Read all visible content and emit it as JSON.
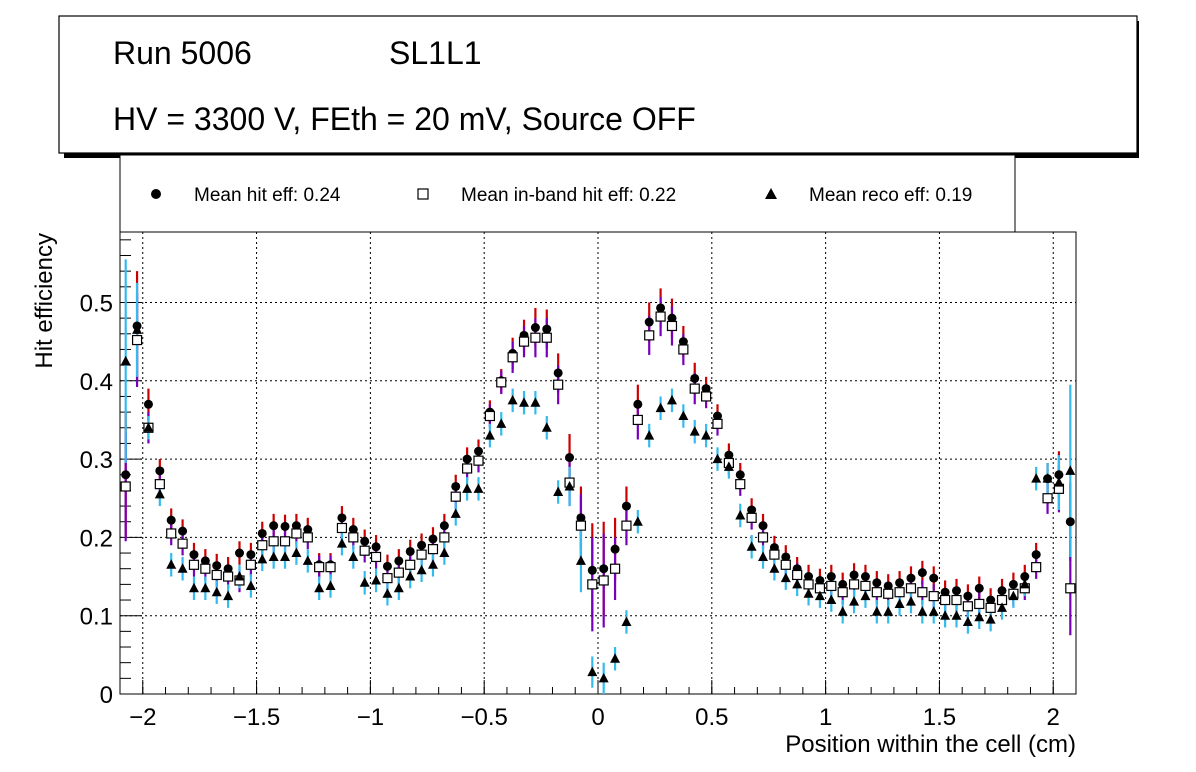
{
  "chart_data": {
    "type": "scatter",
    "title_lines": [
      "Run 5006",
      "SL1L1",
      "HV = 3300 V, FEth = 20 mV, Source OFF"
    ],
    "xlabel": "Position within the cell (cm)",
    "ylabel": "Hit efficiency",
    "xlim": [
      -2.1,
      2.1
    ],
    "ylim": [
      0,
      0.59
    ],
    "x_ticks": [
      -2,
      -1.5,
      -1,
      -0.5,
      0,
      0.5,
      1,
      1.5,
      2
    ],
    "x_tick_labels": [
      "−2",
      "−1.5",
      "−1",
      "−0.5",
      "0",
      "0.5",
      "1",
      "1.5",
      "2"
    ],
    "y_ticks": [
      0,
      0.1,
      0.2,
      0.3,
      0.4,
      0.5
    ],
    "y_tick_labels": [
      "0",
      "0.1",
      "0.2",
      "0.3",
      "0.4",
      "0.5"
    ],
    "grid": true,
    "legend_position": "top",
    "x": [
      -2.075,
      -2.025,
      -1.975,
      -1.925,
      -1.875,
      -1.825,
      -1.775,
      -1.725,
      -1.675,
      -1.625,
      -1.575,
      -1.525,
      -1.475,
      -1.425,
      -1.375,
      -1.325,
      -1.275,
      -1.225,
      -1.175,
      -1.125,
      -1.075,
      -1.025,
      -0.975,
      -0.925,
      -0.875,
      -0.825,
      -0.775,
      -0.725,
      -0.675,
      -0.625,
      -0.575,
      -0.525,
      -0.475,
      -0.425,
      -0.375,
      -0.325,
      -0.275,
      -0.225,
      -0.175,
      -0.125,
      -0.075,
      -0.025,
      0.025,
      0.075,
      0.125,
      0.175,
      0.225,
      0.275,
      0.325,
      0.375,
      0.425,
      0.475,
      0.525,
      0.575,
      0.625,
      0.675,
      0.725,
      0.775,
      0.825,
      0.875,
      0.925,
      0.975,
      1.025,
      1.075,
      1.125,
      1.175,
      1.225,
      1.275,
      1.325,
      1.375,
      1.425,
      1.475,
      1.525,
      1.575,
      1.625,
      1.675,
      1.725,
      1.775,
      1.825,
      1.875,
      1.925,
      1.975,
      2.025,
      2.075
    ],
    "series": [
      {
        "name": "Mean hit  eff: 0.24",
        "marker": "circle",
        "color": "#000000",
        "errcolor": "#cc0000",
        "values": [
          0.28,
          0.47,
          0.37,
          0.285,
          0.222,
          0.208,
          0.178,
          0.17,
          0.164,
          0.16,
          0.18,
          0.178,
          0.205,
          0.215,
          0.214,
          0.215,
          0.21,
          0.165,
          0.165,
          0.225,
          0.21,
          0.195,
          0.188,
          0.163,
          0.17,
          0.182,
          0.19,
          0.198,
          0.215,
          0.265,
          0.3,
          0.31,
          0.36,
          0.4,
          0.435,
          0.458,
          0.468,
          0.466,
          0.41,
          0.302,
          0.225,
          0.158,
          0.16,
          0.185,
          0.24,
          0.37,
          0.475,
          0.493,
          0.48,
          0.45,
          0.403,
          0.39,
          0.355,
          0.305,
          0.28,
          0.235,
          0.215,
          0.187,
          0.175,
          0.16,
          0.15,
          0.145,
          0.15,
          0.14,
          0.152,
          0.15,
          0.142,
          0.138,
          0.142,
          0.148,
          0.155,
          0.148,
          0.13,
          0.132,
          0.125,
          0.135,
          0.12,
          0.132,
          0.14,
          0.15,
          0.178,
          0.275,
          0.28,
          0.22
        ],
        "errors": [
          0.08,
          0.07,
          0.02,
          0.015,
          0.015,
          0.015,
          0.015,
          0.015,
          0.015,
          0.015,
          0.015,
          0.015,
          0.015,
          0.015,
          0.015,
          0.015,
          0.015,
          0.015,
          0.015,
          0.015,
          0.015,
          0.015,
          0.015,
          0.015,
          0.015,
          0.015,
          0.015,
          0.015,
          0.015,
          0.015,
          0.015,
          0.015,
          0.015,
          0.015,
          0.02,
          0.02,
          0.025,
          0.025,
          0.025,
          0.03,
          0.04,
          0.06,
          0.06,
          0.04,
          0.025,
          0.025,
          0.025,
          0.025,
          0.025,
          0.02,
          0.02,
          0.015,
          0.015,
          0.015,
          0.015,
          0.015,
          0.015,
          0.015,
          0.015,
          0.015,
          0.015,
          0.015,
          0.015,
          0.015,
          0.015,
          0.015,
          0.015,
          0.015,
          0.015,
          0.015,
          0.015,
          0.015,
          0.015,
          0.015,
          0.015,
          0.015,
          0.015,
          0.015,
          0.015,
          0.015,
          0.015,
          0.02,
          0.03,
          0.05
        ]
      },
      {
        "name": "Mean in-band hit eff: 0.22",
        "marker": "square-open",
        "color": "#000000",
        "errcolor": "#7700bb",
        "values": [
          0.265,
          0.452,
          0.34,
          0.268,
          0.205,
          0.192,
          0.165,
          0.16,
          0.152,
          0.15,
          0.145,
          0.165,
          0.19,
          0.195,
          0.195,
          0.205,
          0.2,
          0.162,
          0.162,
          0.212,
          0.2,
          0.183,
          0.175,
          0.148,
          0.155,
          0.165,
          0.178,
          0.185,
          0.2,
          0.252,
          0.288,
          0.298,
          0.355,
          0.398,
          0.43,
          0.45,
          0.455,
          0.455,
          0.395,
          0.27,
          0.215,
          0.14,
          0.145,
          0.16,
          0.215,
          0.35,
          0.458,
          0.482,
          0.47,
          0.44,
          0.39,
          0.38,
          0.345,
          0.295,
          0.268,
          0.225,
          0.2,
          0.178,
          0.165,
          0.152,
          0.14,
          0.135,
          0.138,
          0.13,
          0.14,
          0.138,
          0.13,
          0.128,
          0.13,
          0.135,
          0.13,
          0.125,
          0.12,
          0.12,
          0.112,
          0.115,
          0.11,
          0.12,
          0.128,
          0.135,
          0.162,
          0.25,
          0.262,
          0.135
        ],
        "errors": [
          0.07,
          0.06,
          0.02,
          0.015,
          0.015,
          0.015,
          0.015,
          0.015,
          0.015,
          0.015,
          0.015,
          0.015,
          0.015,
          0.015,
          0.015,
          0.015,
          0.015,
          0.015,
          0.015,
          0.015,
          0.015,
          0.015,
          0.015,
          0.015,
          0.015,
          0.015,
          0.015,
          0.015,
          0.015,
          0.015,
          0.015,
          0.015,
          0.015,
          0.015,
          0.02,
          0.02,
          0.025,
          0.025,
          0.025,
          0.03,
          0.04,
          0.06,
          0.06,
          0.04,
          0.025,
          0.025,
          0.025,
          0.025,
          0.025,
          0.02,
          0.02,
          0.015,
          0.015,
          0.015,
          0.015,
          0.015,
          0.015,
          0.015,
          0.015,
          0.015,
          0.015,
          0.015,
          0.015,
          0.015,
          0.015,
          0.015,
          0.015,
          0.015,
          0.015,
          0.015,
          0.015,
          0.015,
          0.015,
          0.015,
          0.015,
          0.015,
          0.015,
          0.015,
          0.015,
          0.015,
          0.015,
          0.02,
          0.03,
          0.06
        ]
      },
      {
        "name": "Mean reco eff: 0.19",
        "marker": "triangle",
        "color": "#000000",
        "errcolor": "#33bbee",
        "values": [
          0.425,
          0.465,
          0.34,
          0.255,
          0.165,
          0.16,
          0.135,
          0.135,
          0.13,
          0.125,
          0.15,
          0.138,
          0.172,
          0.175,
          0.175,
          0.18,
          0.17,
          0.135,
          0.138,
          0.192,
          0.175,
          0.142,
          0.145,
          0.128,
          0.135,
          0.15,
          0.158,
          0.165,
          0.18,
          0.23,
          0.262,
          0.262,
          0.33,
          0.345,
          0.375,
          0.372,
          0.372,
          0.34,
          0.258,
          0.265,
          0.17,
          0.028,
          0.02,
          0.045,
          0.092,
          0.22,
          0.33,
          0.365,
          0.375,
          0.355,
          0.335,
          0.33,
          0.3,
          0.29,
          0.228,
          0.188,
          0.175,
          0.16,
          0.148,
          0.14,
          0.128,
          0.125,
          0.12,
          0.105,
          0.118,
          0.125,
          0.105,
          0.105,
          0.115,
          0.118,
          0.105,
          0.105,
          0.1,
          0.1,
          0.092,
          0.098,
          0.095,
          0.11,
          0.125,
          0.14,
          0.275,
          0.275,
          0.27,
          0.285
        ],
        "errors": [
          0.13,
          0.06,
          0.015,
          0.015,
          0.015,
          0.015,
          0.015,
          0.015,
          0.015,
          0.015,
          0.015,
          0.015,
          0.015,
          0.015,
          0.015,
          0.015,
          0.015,
          0.015,
          0.015,
          0.015,
          0.015,
          0.015,
          0.015,
          0.015,
          0.015,
          0.015,
          0.015,
          0.015,
          0.015,
          0.015,
          0.015,
          0.015,
          0.015,
          0.015,
          0.015,
          0.015,
          0.015,
          0.015,
          0.015,
          0.025,
          0.04,
          0.02,
          0.02,
          0.015,
          0.015,
          0.015,
          0.015,
          0.015,
          0.015,
          0.015,
          0.015,
          0.015,
          0.015,
          0.015,
          0.015,
          0.015,
          0.015,
          0.015,
          0.015,
          0.015,
          0.015,
          0.015,
          0.015,
          0.015,
          0.015,
          0.015,
          0.015,
          0.015,
          0.015,
          0.015,
          0.015,
          0.015,
          0.015,
          0.015,
          0.015,
          0.015,
          0.015,
          0.015,
          0.015,
          0.015,
          0.015,
          0.02,
          0.035,
          0.11
        ]
      }
    ]
  }
}
